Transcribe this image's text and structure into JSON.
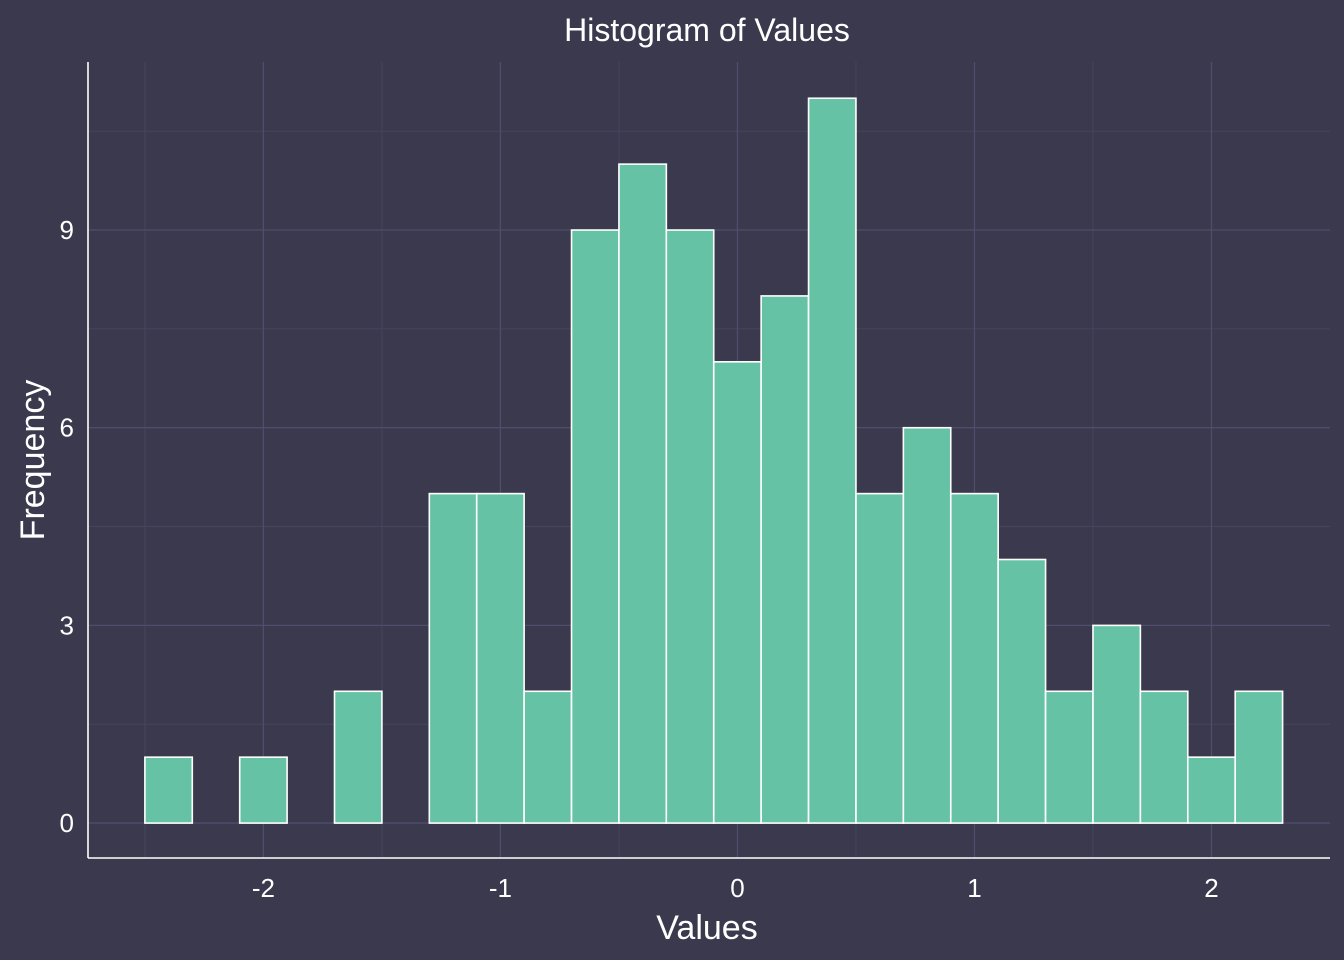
{
  "chart_data": {
    "type": "bar",
    "title": "Histogram of Values",
    "xlabel": "Values",
    "ylabel": "Frequency",
    "bin_width": 0.2,
    "bins": [
      {
        "start": -2.5,
        "end": -2.3,
        "count": 1
      },
      {
        "start": -2.3,
        "end": -2.1,
        "count": 0
      },
      {
        "start": -2.1,
        "end": -1.9,
        "count": 1
      },
      {
        "start": -1.9,
        "end": -1.7,
        "count": 0
      },
      {
        "start": -1.7,
        "end": -1.5,
        "count": 2
      },
      {
        "start": -1.5,
        "end": -1.3,
        "count": 0
      },
      {
        "start": -1.3,
        "end": -1.1,
        "count": 5
      },
      {
        "start": -1.1,
        "end": -0.9,
        "count": 5
      },
      {
        "start": -0.9,
        "end": -0.7,
        "count": 2
      },
      {
        "start": -0.7,
        "end": -0.5,
        "count": 9
      },
      {
        "start": -0.5,
        "end": -0.3,
        "count": 10
      },
      {
        "start": -0.3,
        "end": -0.1,
        "count": 9
      },
      {
        "start": -0.1,
        "end": 0.1,
        "count": 7
      },
      {
        "start": 0.1,
        "end": 0.3,
        "count": 8
      },
      {
        "start": 0.3,
        "end": 0.5,
        "count": 11
      },
      {
        "start": 0.5,
        "end": 0.7,
        "count": 5
      },
      {
        "start": 0.7,
        "end": 0.9,
        "count": 6
      },
      {
        "start": 0.9,
        "end": 1.1,
        "count": 5
      },
      {
        "start": 1.1,
        "end": 1.3,
        "count": 4
      },
      {
        "start": 1.3,
        "end": 1.5,
        "count": 2
      },
      {
        "start": 1.5,
        "end": 1.7,
        "count": 3
      },
      {
        "start": 1.7,
        "end": 1.9,
        "count": 2
      },
      {
        "start": 1.9,
        "end": 2.1,
        "count": 1
      },
      {
        "start": 2.1,
        "end": 2.3,
        "count": 2
      }
    ],
    "xlim": [
      -2.74,
      2.5
    ],
    "ylim": [
      -0.53,
      11.55
    ],
    "x_ticks": [
      -2,
      -1,
      0,
      1,
      2
    ],
    "x_tick_labels": [
      "-2",
      "-1",
      "0",
      "1",
      "2"
    ],
    "y_ticks": [
      0,
      3,
      6,
      9
    ],
    "y_tick_labels": [
      "0",
      "3",
      "6",
      "9"
    ],
    "grid": true,
    "legend": "none",
    "colors": {
      "background": "#3a394d",
      "bar_fill": "#66c2a5",
      "bar_edge": "#ffffff",
      "grid": "#4e4e6c",
      "text": "#ffffff"
    }
  }
}
